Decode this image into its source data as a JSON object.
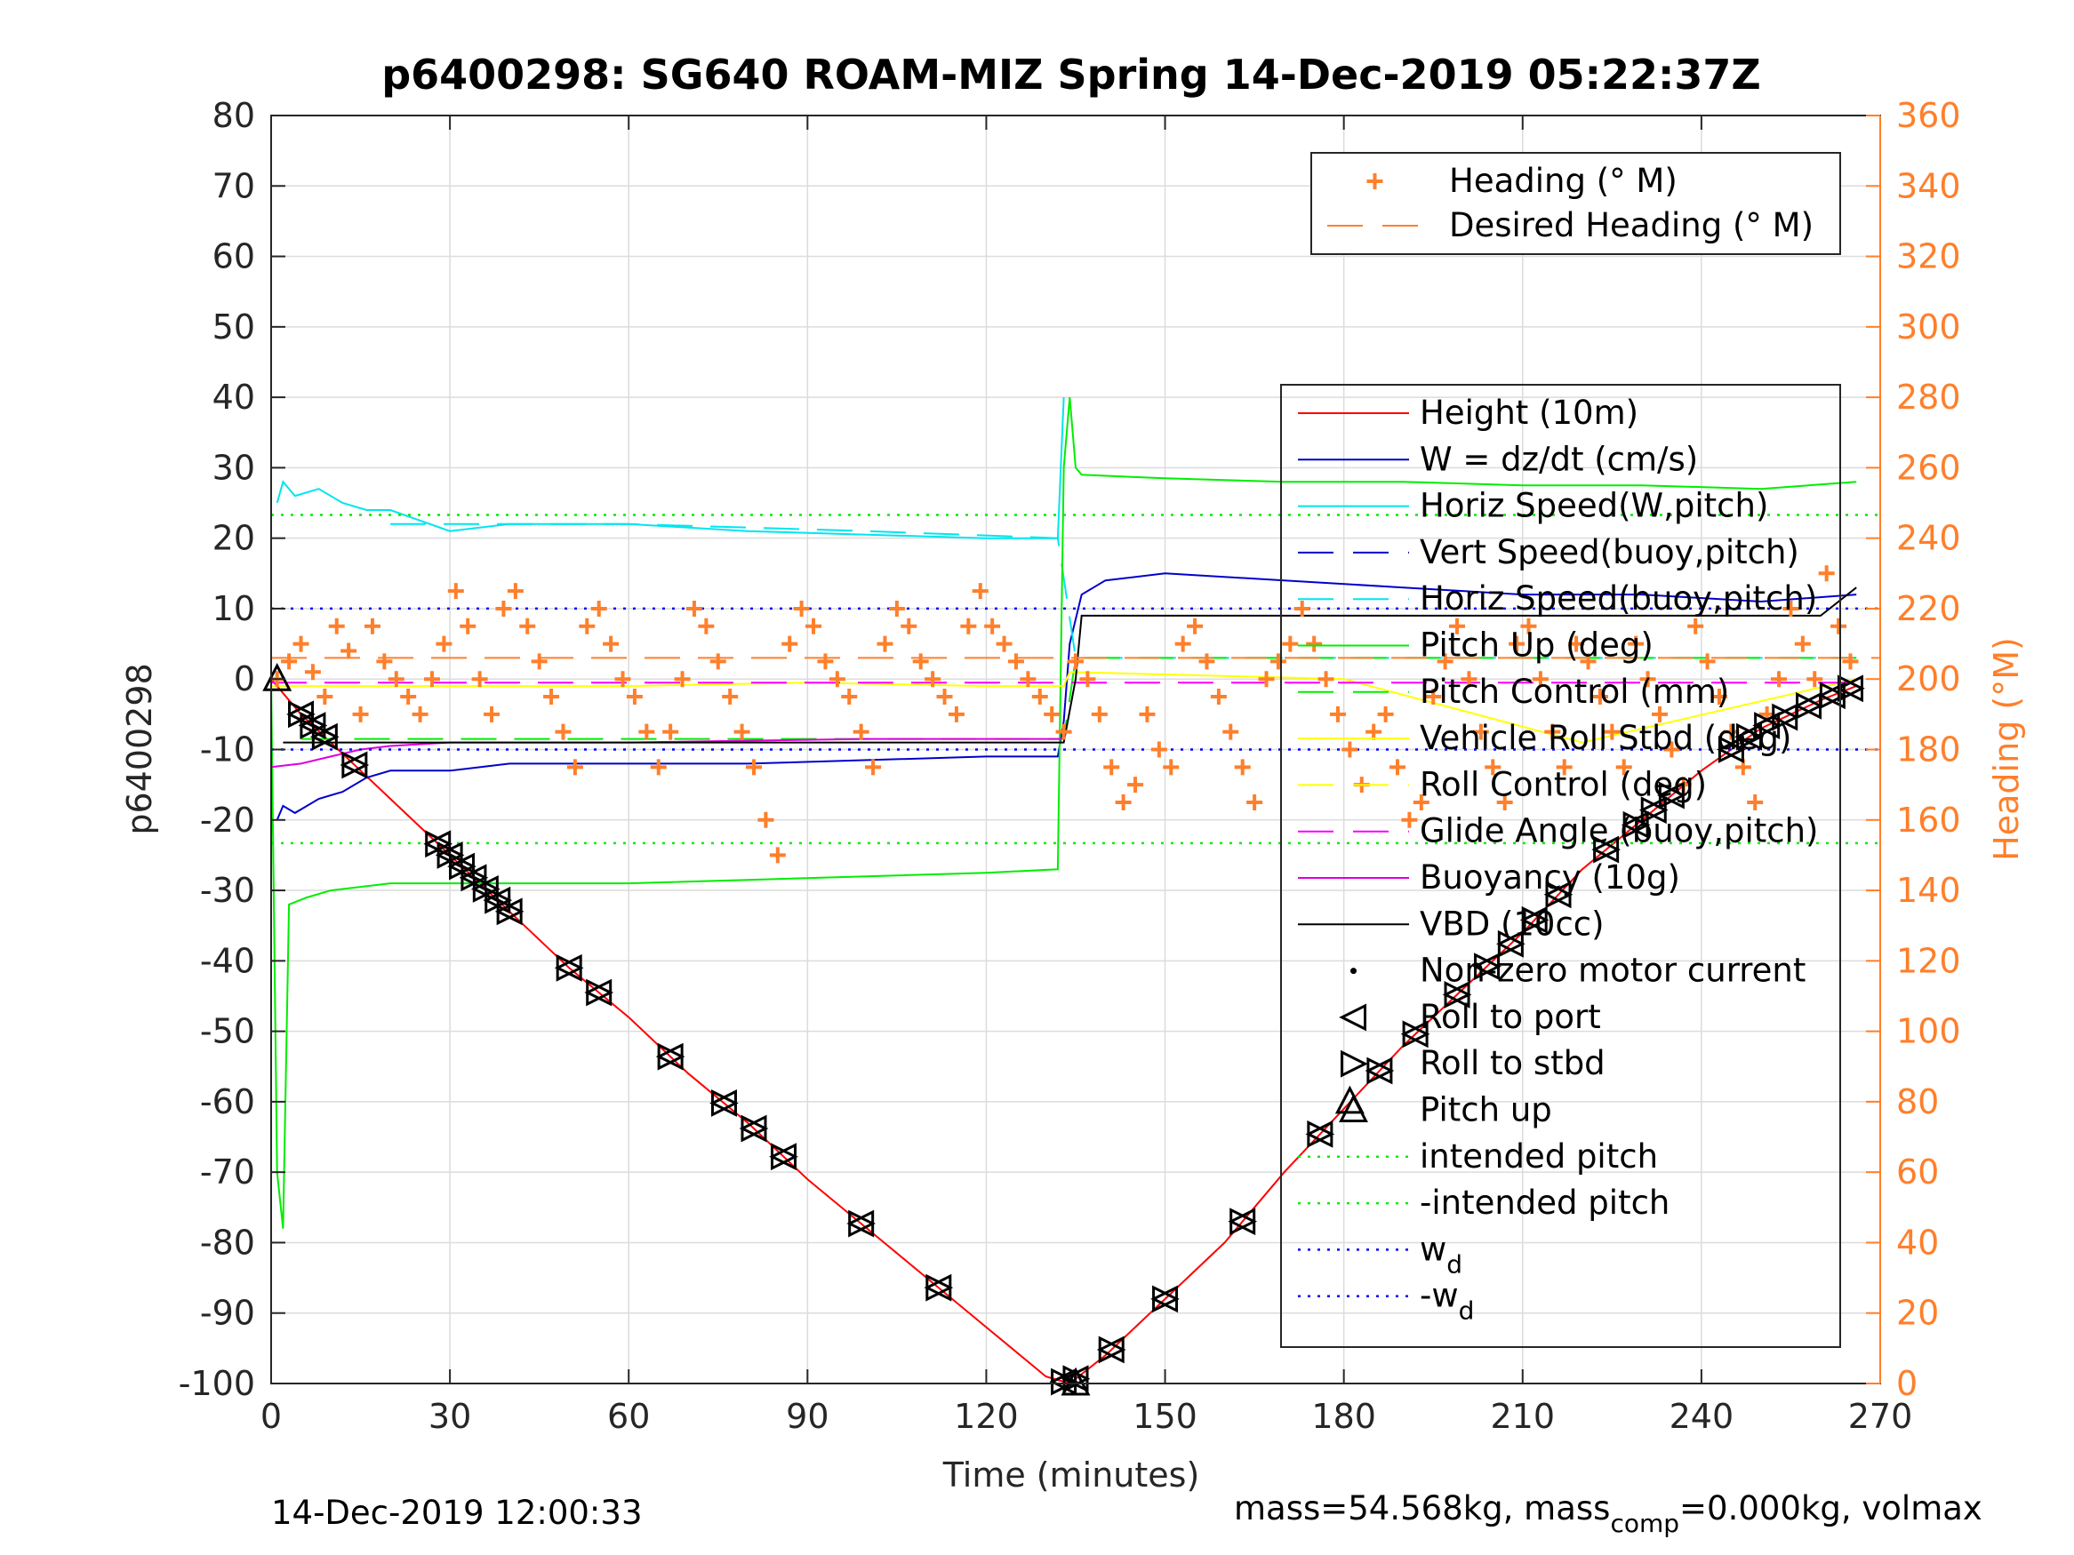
{
  "chart_data": {
    "type": "line",
    "title": "p6400298: SG640 ROAM-MIZ Spring 14-Dec-2019 05:22:37Z",
    "xlabel": "Time (minutes)",
    "ylabel_left": "p6400298",
    "ylabel_right": "Heading (°M)",
    "xlim": [
      0,
      270
    ],
    "ylim_left": [
      -100,
      80
    ],
    "ylim_right": [
      0,
      360
    ],
    "xticks": [
      "0",
      "30",
      "60",
      "90",
      "120",
      "150",
      "180",
      "210",
      "240",
      "270"
    ],
    "yticks_left": [
      "80",
      "70",
      "60",
      "50",
      "40",
      "30",
      "20",
      "10",
      "0",
      "-10",
      "-20",
      "-30",
      "-40",
      "-50",
      "-60",
      "-70",
      "-80",
      "-90",
      "-100"
    ],
    "yticks_right": [
      "360",
      "340",
      "320",
      "300",
      "280",
      "260",
      "240",
      "220",
      "200",
      "180",
      "160",
      "140",
      "120",
      "100",
      "80",
      "60",
      "40",
      "20",
      "0"
    ],
    "grid": true,
    "footer_left": "14-Dec-2019 12:00:33",
    "footer_right": {
      "pre": "mass=54.568kg, mass",
      "sub": "comp",
      "post": "=0.000kg, volmax"
    },
    "legend_top": [
      {
        "label": "Heading (° M)",
        "color": "#ff7f2a",
        "style": "plus"
      },
      {
        "label": "Desired Heading (° M)",
        "color": "#ff7f2a",
        "style": "dash"
      }
    ],
    "legend_main": [
      {
        "label": "Height (10m)",
        "color": "#ff0000",
        "style": "solid"
      },
      {
        "label": "W = dz/dt (cm/s)",
        "color": "#0000cc",
        "style": "solid"
      },
      {
        "label": "Horiz Speed(W,pitch)",
        "color": "#00e5ee",
        "style": "solid"
      },
      {
        "label": "Vert Speed(buoy,pitch)",
        "color": "#0000cc",
        "style": "dash"
      },
      {
        "label": "Horiz Speed(buoy,pitch)",
        "color": "#00e5ee",
        "style": "dash"
      },
      {
        "label": "Pitch Up (deg)",
        "color": "#00ee00",
        "style": "solid"
      },
      {
        "label": "Pitch Control (mm)",
        "color": "#00ee00",
        "style": "dash"
      },
      {
        "label": "Vehicle Roll Stbd (deg)",
        "color": "#ffff00",
        "style": "solid"
      },
      {
        "label": "Roll Control (deg)",
        "color": "#ffff00",
        "style": "dash"
      },
      {
        "label": "Glide Angle (buoy,pitch)",
        "color": "#ff00ff",
        "style": "dash"
      },
      {
        "label": "Buoyancy (10g)",
        "color": "#dd00dd",
        "style": "solid"
      },
      {
        "label": "VBD (10cc)",
        "color": "#000000",
        "style": "solid"
      },
      {
        "label": "Non-zero motor current",
        "color": "#000000",
        "style": "dot"
      },
      {
        "label": "Roll to port",
        "color": "#000000",
        "style": "tri-left"
      },
      {
        "label": "Roll to stbd",
        "color": "#000000",
        "style": "tri-right"
      },
      {
        "label": "Pitch up",
        "color": "#000000",
        "style": "tri-up"
      },
      {
        "label": "intended pitch",
        "color": "#00ee00",
        "style": "dot"
      },
      {
        "label": "-intended pitch",
        "color": "#00ee00",
        "style": "dot"
      },
      {
        "label": "w",
        "sub": "d",
        "color": "#0000ff",
        "style": "dot"
      },
      {
        "label": "-w",
        "sub": "d",
        "color": "#0000ff",
        "style": "dot"
      }
    ],
    "series": [
      {
        "name": "Height (10m)",
        "axis": "left",
        "color": "#ff0000",
        "x": [
          0,
          5,
          10,
          15,
          20,
          30,
          40,
          50,
          60,
          70,
          80,
          90,
          100,
          110,
          120,
          130,
          134,
          140,
          150,
          160,
          170,
          180,
          190,
          200,
          210,
          220,
          230,
          240,
          250,
          260,
          266
        ],
        "y": [
          0,
          -5,
          -9,
          -13,
          -17,
          -25,
          -33,
          -41,
          -48,
          -56,
          -63,
          -71,
          -78,
          -85,
          -92,
          -99,
          -100,
          -96,
          -88,
          -80,
          -70,
          -61,
          -52,
          -44,
          -36,
          -27,
          -20,
          -13,
          -7,
          -3,
          -1
        ]
      },
      {
        "name": "W = dz/dt (cm/s)",
        "axis": "left",
        "color": "#0000cc",
        "x": [
          1,
          2,
          4,
          8,
          12,
          16,
          20,
          30,
          40,
          60,
          80,
          100,
          120,
          132,
          133,
          134,
          136,
          140,
          150,
          170,
          190,
          210,
          230,
          250,
          266
        ],
        "y": [
          -20,
          -18,
          -19,
          -17,
          -16,
          -14,
          -13,
          -13,
          -12,
          -12,
          -12,
          -11.5,
          -11,
          -11,
          -6,
          5,
          12,
          14,
          15,
          14,
          13,
          12,
          12,
          11,
          12
        ]
      },
      {
        "name": "Horiz Speed(W,pitch)",
        "axis": "left",
        "color": "#00e5ee",
        "x": [
          1,
          2,
          4,
          8,
          12,
          16,
          20,
          30,
          40,
          60,
          80,
          100,
          120,
          132,
          133
        ],
        "y": [
          25,
          28,
          26,
          27,
          25,
          24,
          24,
          21,
          22,
          22,
          21,
          20.5,
          20,
          20,
          40
        ]
      },
      {
        "name": "Horiz Speed(buoy,pitch)",
        "axis": "left",
        "color": "#00e5ee",
        "x": [
          20,
          60,
          100,
          132,
          135,
          200,
          266
        ],
        "y": [
          22,
          22,
          21,
          20,
          3,
          3,
          3
        ]
      },
      {
        "name": "Pitch Up (deg)",
        "axis": "left",
        "color": "#00ee00",
        "x": [
          0,
          1,
          2,
          3,
          6,
          10,
          20,
          40,
          60,
          80,
          100,
          120,
          132,
          133,
          134,
          135,
          136,
          150,
          170,
          190,
          210,
          230,
          250,
          266
        ],
        "y": [
          0,
          -70,
          -78,
          -32,
          -31,
          -30,
          -29,
          -29,
          -29,
          -28.5,
          -28,
          -27.5,
          -27,
          30,
          40,
          30,
          29,
          28.5,
          28,
          28,
          27.5,
          27.5,
          27,
          28
        ]
      },
      {
        "name": "Pitch Control (mm)",
        "axis": "left",
        "color": "#00ee00",
        "x": [
          5,
          133,
          135,
          266
        ],
        "y": [
          -8.5,
          -8.5,
          3,
          3
        ]
      },
      {
        "name": "Vehicle Roll Stbd (deg)",
        "axis": "left",
        "color": "#ffff00",
        "x": [
          0,
          30,
          60,
          90,
          120,
          133,
          134,
          180,
          220,
          266
        ],
        "y": [
          -1,
          -1,
          -1,
          -0.5,
          -1,
          -1,
          1,
          0,
          -9,
          0
        ]
      },
      {
        "name": "Glide Angle (buoy,pitch)",
        "axis": "left",
        "color": "#ff00ff",
        "x": [
          0,
          266
        ],
        "y": [
          -0.5,
          -0.5
        ]
      },
      {
        "name": "Buoyancy (10g)",
        "axis": "left",
        "color": "#dd00dd",
        "x": [
          0,
          5,
          10,
          15,
          20,
          30,
          60,
          100,
          133
        ],
        "y": [
          -12.5,
          -12,
          -11,
          -10,
          -9.5,
          -9,
          -9,
          -8.5,
          -8.5
        ]
      },
      {
        "name": "VBD (10cc)",
        "axis": "left",
        "color": "#000000",
        "x": [
          2,
          40,
          80,
          133,
          135,
          136,
          200,
          260,
          266
        ],
        "y": [
          -9,
          -9,
          -9,
          -9,
          0,
          9,
          9,
          9,
          13
        ]
      },
      {
        "name": "intended pitch",
        "axis": "left",
        "color": "#00ee00",
        "x": [
          0,
          270
        ],
        "y": [
          23.3,
          23.3
        ]
      },
      {
        "name": "-intended pitch",
        "axis": "left",
        "color": "#00ee00",
        "x": [
          0,
          270
        ],
        "y": [
          -23.3,
          -23.3
        ]
      },
      {
        "name": "w_d",
        "axis": "left",
        "color": "#0000ff",
        "x": [
          0,
          270
        ],
        "y": [
          10,
          10
        ]
      },
      {
        "name": "-w_d",
        "axis": "left",
        "color": "#0000ff",
        "x": [
          0,
          270
        ],
        "y": [
          -10,
          -10
        ]
      },
      {
        "name": "Desired Heading (° M)",
        "axis": "right",
        "color": "#ff7f2a",
        "x": [
          0,
          270
        ],
        "y": [
          206,
          206
        ]
      },
      {
        "name": "Heading (° M)",
        "axis": "right",
        "color": "#ff7f2a",
        "x": [
          1,
          3,
          5,
          7,
          9,
          11,
          13,
          15,
          17,
          19,
          21,
          23,
          25,
          27,
          29,
          31,
          33,
          35,
          37,
          39,
          41,
          43,
          45,
          47,
          49,
          51,
          53,
          55,
          57,
          59,
          61,
          63,
          65,
          67,
          69,
          71,
          73,
          75,
          77,
          79,
          81,
          83,
          85,
          87,
          89,
          91,
          93,
          95,
          97,
          99,
          101,
          103,
          105,
          107,
          109,
          111,
          113,
          115,
          117,
          119,
          121,
          123,
          125,
          127,
          129,
          131,
          133,
          135,
          137,
          139,
          141,
          143,
          145,
          147,
          149,
          151,
          153,
          155,
          157,
          159,
          161,
          163,
          165,
          167,
          169,
          171,
          173,
          175,
          177,
          179,
          181,
          183,
          185,
          187,
          189,
          191,
          193,
          195,
          197,
          199,
          201,
          203,
          205,
          207,
          209,
          211,
          213,
          215,
          217,
          219,
          221,
          223,
          225,
          227,
          229,
          231,
          233,
          235,
          237,
          239,
          241,
          243,
          245,
          247,
          249,
          251,
          253,
          255,
          257,
          259,
          261,
          263,
          265
        ],
        "y": [
          200,
          205,
          210,
          202,
          195,
          215,
          208,
          190,
          215,
          205,
          200,
          195,
          190,
          200,
          210,
          225,
          215,
          200,
          190,
          220,
          225,
          215,
          205,
          195,
          185,
          175,
          215,
          220,
          210,
          200,
          195,
          185,
          175,
          185,
          200,
          220,
          215,
          205,
          195,
          185,
          175,
          160,
          150,
          210,
          220,
          215,
          205,
          200,
          195,
          185,
          175,
          210,
          220,
          215,
          205,
          200,
          195,
          190,
          215,
          225,
          215,
          210,
          205,
          200,
          195,
          190,
          185,
          205,
          200,
          190,
          175,
          165,
          170,
          190,
          180,
          175,
          210,
          215,
          205,
          195,
          185,
          175,
          165,
          200,
          205,
          210,
          220,
          210,
          200,
          190,
          180,
          170,
          185,
          190,
          175,
          160,
          165,
          195,
          205,
          215,
          200,
          185,
          175,
          165,
          210,
          215,
          200,
          185,
          175,
          210,
          205,
          195,
          185,
          175,
          210,
          200,
          190,
          180,
          170,
          215,
          205,
          195,
          185,
          175,
          165,
          190,
          200,
          220,
          210,
          200,
          230,
          215,
          205
        ]
      }
    ]
  }
}
